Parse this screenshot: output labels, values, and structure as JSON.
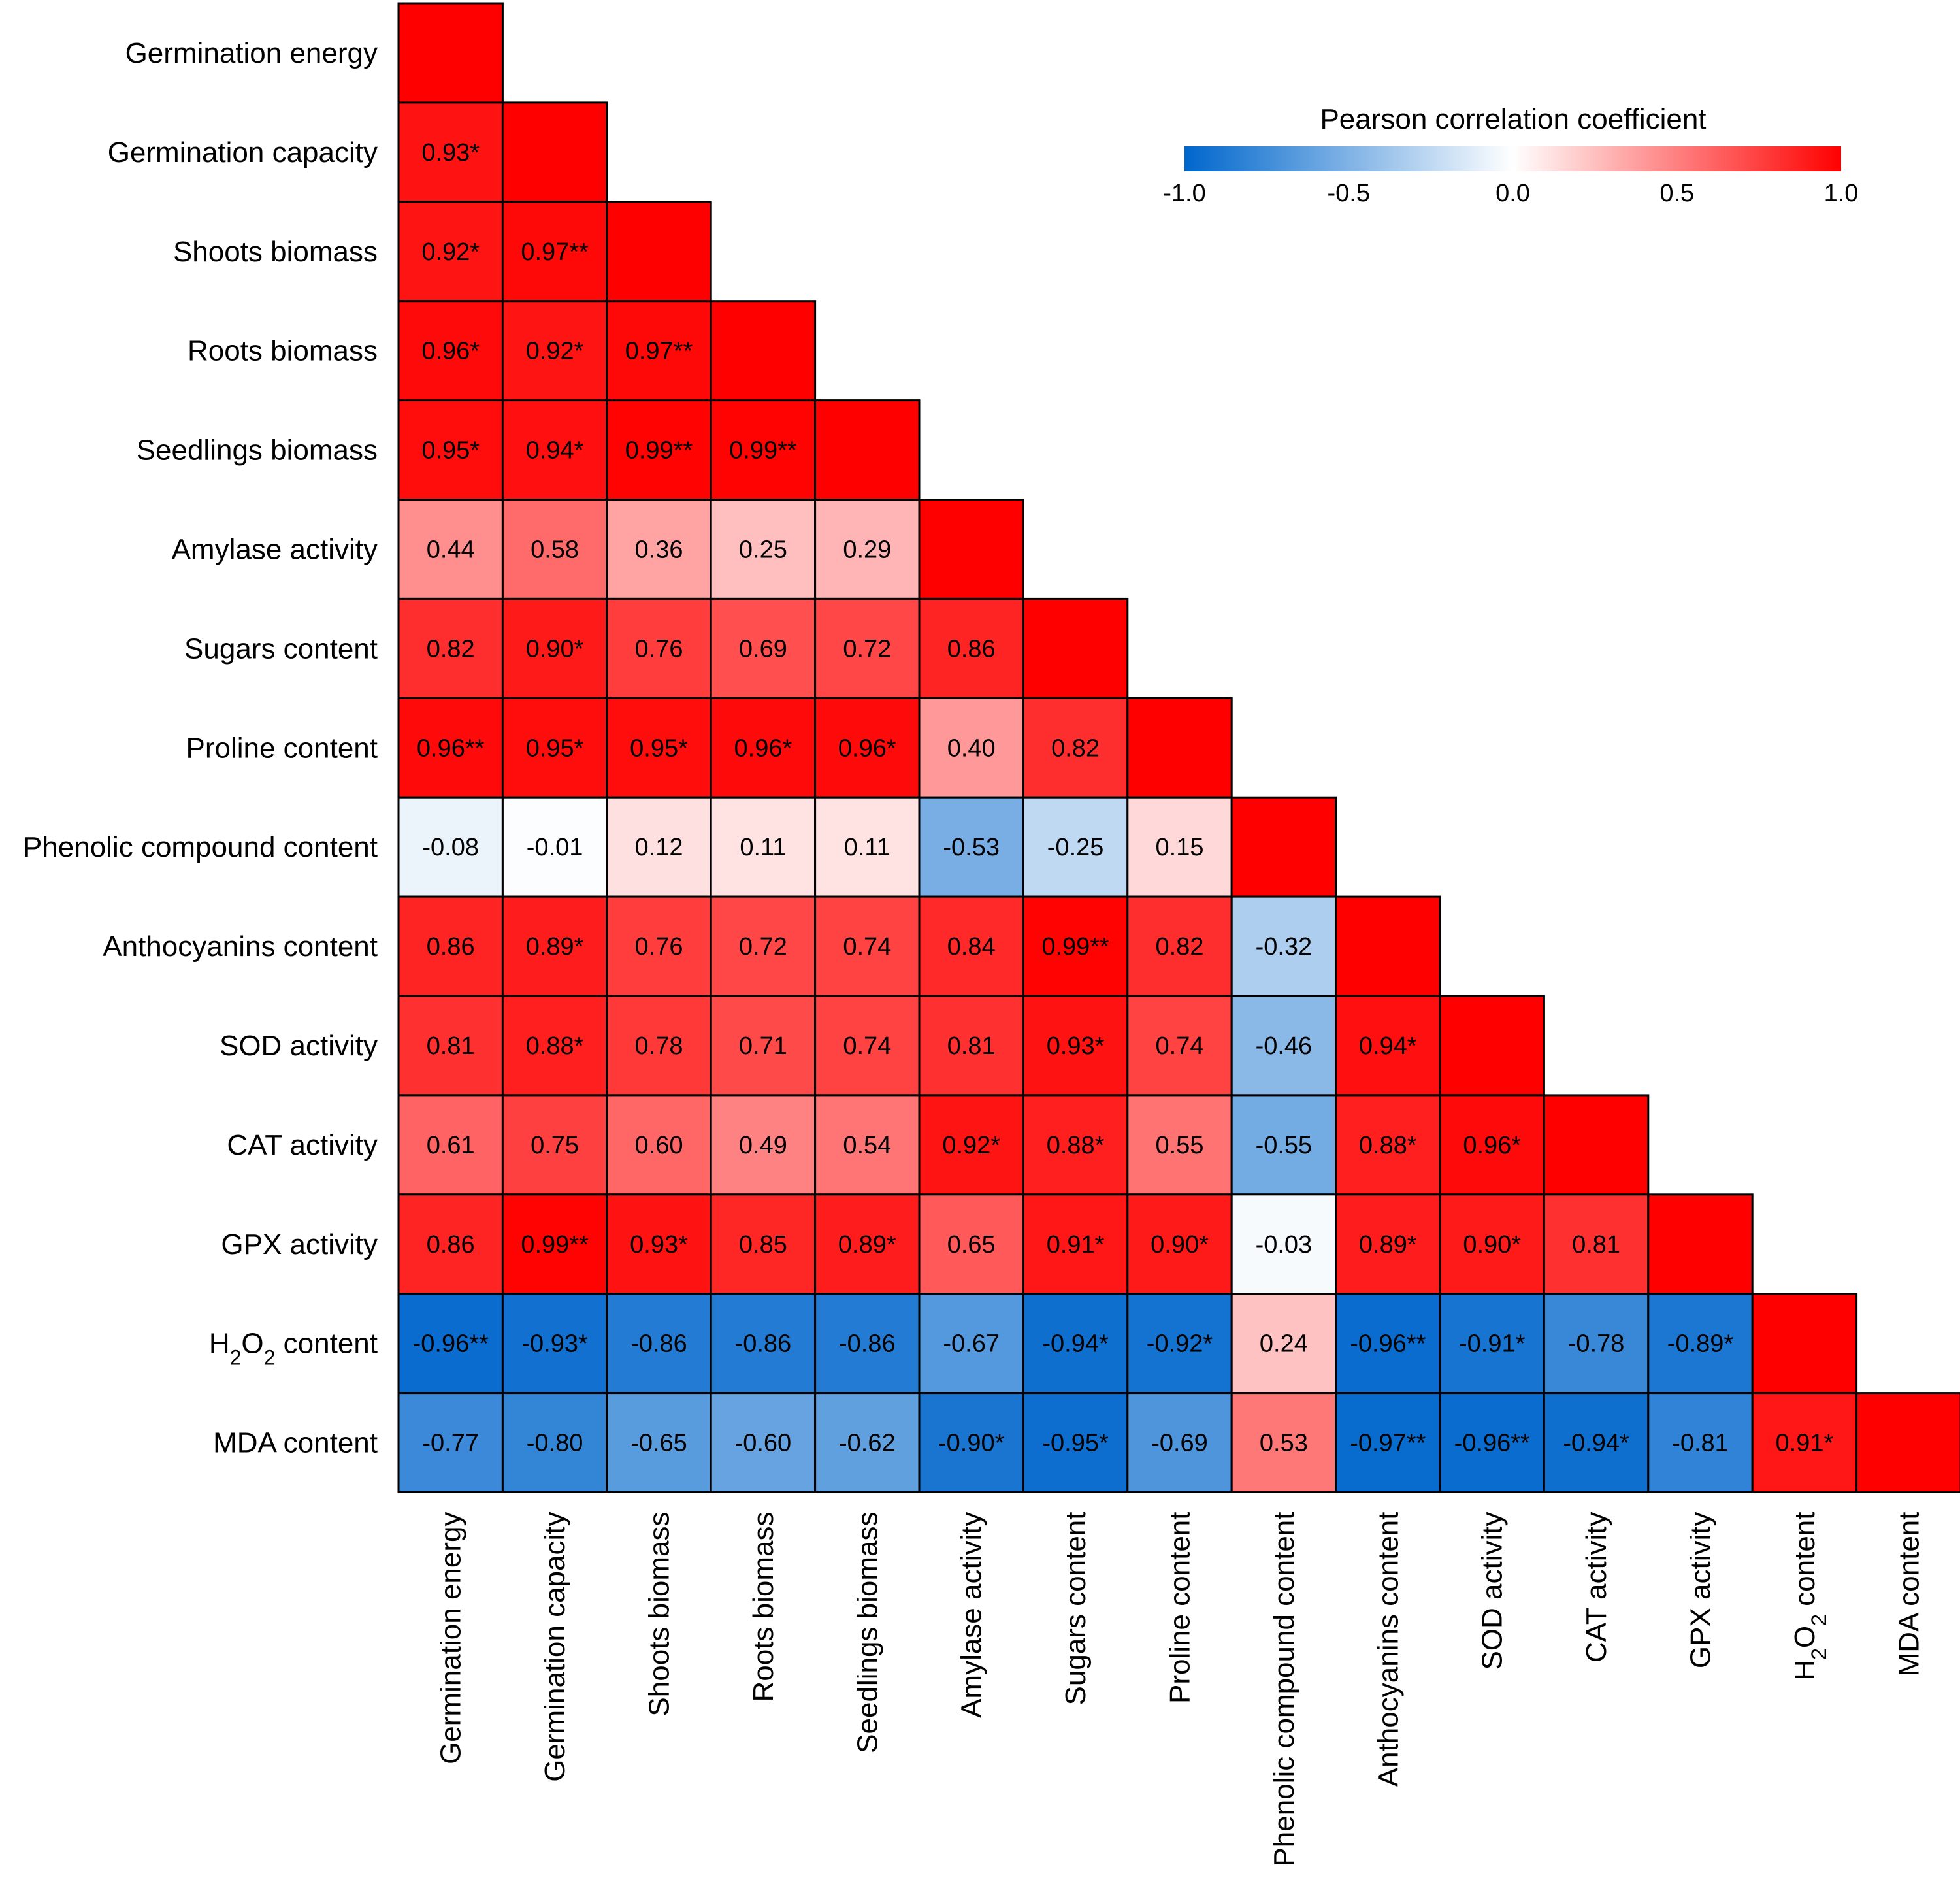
{
  "chart_data": {
    "type": "heatmap",
    "matrix_shape": "lower-triangular",
    "variables": [
      {
        "key": "ge",
        "label": "Germination energy"
      },
      {
        "key": "gc",
        "label": "Germination capacity"
      },
      {
        "key": "sb",
        "label": "Shoots biomass"
      },
      {
        "key": "rb",
        "label": "Roots biomass"
      },
      {
        "key": "slb",
        "label": "Seedlings biomass"
      },
      {
        "key": "aa",
        "label": "Amylase activity"
      },
      {
        "key": "sc",
        "label": "Sugars content"
      },
      {
        "key": "pc",
        "label": "Proline content"
      },
      {
        "key": "phc",
        "label": "Phenolic compound content"
      },
      {
        "key": "ac",
        "label": "Anthocyanins content"
      },
      {
        "key": "sod",
        "label": "SOD activity"
      },
      {
        "key": "cat",
        "label": "CAT activity"
      },
      {
        "key": "gpx",
        "label": "GPX activity"
      },
      {
        "key": "h2o2",
        "label": "H2O2 content",
        "label_parts": [
          "H",
          "2",
          "O",
          "2",
          " content"
        ]
      },
      {
        "key": "mda",
        "label": "MDA content"
      }
    ],
    "cells": [
      [
        1.0
      ],
      [
        0.93,
        1.0
      ],
      [
        0.92,
        0.97,
        1.0
      ],
      [
        0.96,
        0.92,
        0.97,
        1.0
      ],
      [
        0.95,
        0.94,
        0.99,
        0.99,
        1.0
      ],
      [
        0.44,
        0.58,
        0.36,
        0.25,
        0.29,
        1.0
      ],
      [
        0.82,
        0.9,
        0.76,
        0.69,
        0.72,
        0.86,
        1.0
      ],
      [
        0.96,
        0.95,
        0.95,
        0.96,
        0.96,
        0.4,
        0.82,
        1.0
      ],
      [
        -0.08,
        -0.01,
        0.12,
        0.11,
        0.11,
        -0.53,
        -0.25,
        0.15,
        1.0
      ],
      [
        0.86,
        0.89,
        0.76,
        0.72,
        0.74,
        0.84,
        0.99,
        0.82,
        -0.32,
        1.0
      ],
      [
        0.81,
        0.88,
        0.78,
        0.71,
        0.74,
        0.81,
        0.93,
        0.74,
        -0.46,
        0.94,
        1.0
      ],
      [
        0.61,
        0.75,
        0.6,
        0.49,
        0.54,
        0.92,
        0.88,
        0.55,
        -0.55,
        0.88,
        0.96,
        1.0
      ],
      [
        0.86,
        0.99,
        0.93,
        0.85,
        0.89,
        0.65,
        0.91,
        0.9,
        -0.03,
        0.89,
        0.9,
        0.81,
        1.0
      ],
      [
        -0.96,
        -0.93,
        -0.86,
        -0.86,
        -0.86,
        -0.67,
        -0.94,
        -0.92,
        0.24,
        -0.96,
        -0.91,
        -0.78,
        -0.89,
        1.0
      ],
      [
        -0.77,
        -0.8,
        -0.65,
        -0.6,
        -0.62,
        -0.9,
        -0.95,
        -0.69,
        0.53,
        -0.97,
        -0.96,
        -0.94,
        -0.81,
        0.91,
        1.0
      ]
    ],
    "labels": [
      [
        ""
      ],
      [
        "0.93*",
        ""
      ],
      [
        "0.92*",
        "0.97**",
        ""
      ],
      [
        "0.96*",
        "0.92*",
        "0.97**",
        ""
      ],
      [
        "0.95*",
        "0.94*",
        "0.99**",
        "0.99**",
        ""
      ],
      [
        "0.44",
        "0.58",
        "0.36",
        "0.25",
        "0.29",
        ""
      ],
      [
        "0.82",
        "0.90*",
        "0.76",
        "0.69",
        "0.72",
        "0.86",
        ""
      ],
      [
        "0.96**",
        "0.95*",
        "0.95*",
        "0.96*",
        "0.96*",
        "0.40",
        "0.82",
        ""
      ],
      [
        "-0.08",
        "-0.01",
        "0.12",
        "0.11",
        "0.11",
        "-0.53",
        "-0.25",
        "0.15",
        ""
      ],
      [
        "0.86",
        "0.89*",
        "0.76",
        "0.72",
        "0.74",
        "0.84",
        "0.99**",
        "0.82",
        "-0.32",
        ""
      ],
      [
        "0.81",
        "0.88*",
        "0.78",
        "0.71",
        "0.74",
        "0.81",
        "0.93*",
        "0.74",
        "-0.46",
        "0.94*",
        ""
      ],
      [
        "0.61",
        "0.75",
        "0.60",
        "0.49",
        "0.54",
        "0.92*",
        "0.88*",
        "0.55",
        "-0.55",
        "0.88*",
        "0.96*",
        ""
      ],
      [
        "0.86",
        "0.99**",
        "0.93*",
        "0.85",
        "0.89*",
        "0.65",
        "0.91*",
        "0.90*",
        "-0.03",
        "0.89*",
        "0.90*",
        "0.81",
        ""
      ],
      [
        "-0.96**",
        "-0.93*",
        "-0.86",
        "-0.86",
        "-0.86",
        "-0.67",
        "-0.94*",
        "-0.92*",
        "0.24",
        "-0.96**",
        "-0.91*",
        "-0.78",
        "-0.89*",
        ""
      ],
      [
        "-0.77",
        "-0.80",
        "-0.65",
        "-0.60",
        "-0.62",
        "-0.90*",
        "-0.95*",
        "-0.69",
        "0.53",
        "-0.97**",
        "-0.96**",
        "-0.94*",
        "-0.81",
        "0.91*",
        ""
      ]
    ],
    "colorbar": {
      "title": "Pearson correlation coefficient",
      "range": [
        -1.0,
        1.0
      ],
      "ticks": [
        -1.0,
        -0.5,
        0.0,
        0.5,
        1.0
      ],
      "tick_labels": [
        "-1.0",
        "-0.5",
        "0.0",
        "0.5",
        "1.0"
      ],
      "colors": {
        "negative": "#0066cc",
        "neutral": "#ffffff",
        "positive": "#ff0000"
      },
      "placement": "top-right"
    }
  }
}
